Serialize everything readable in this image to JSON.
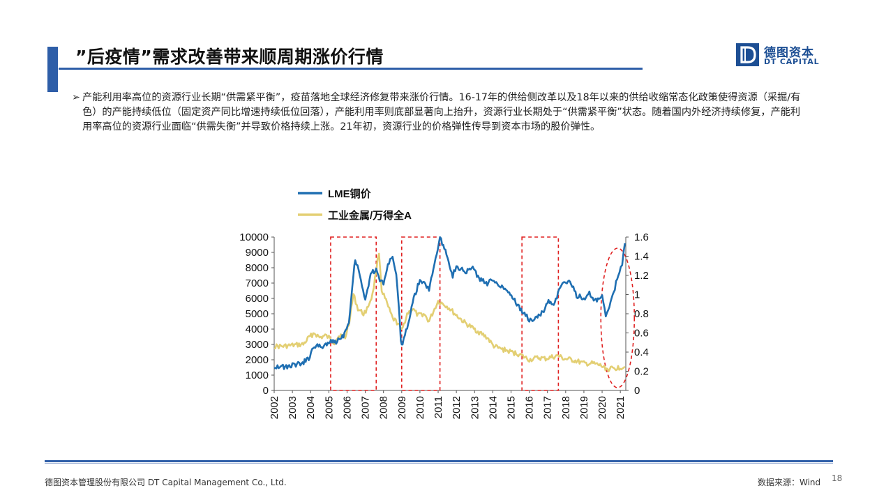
{
  "slide": {
    "title": "”后疫情”需求改善带来顺周期涨价行情",
    "bullet_mark": "➢",
    "bullet_text": "产能利用率高位的资源行业长期“供需紧平衡”，疫苗落地全球经济修复带来涨价行情。16-17年的供给侧改革以及18年以来的供给收缩常态化政策使得资源（采掘/有色）的产能持续低位（固定资产同比增速持续低位回落），产能利用率则底部显著向上抬升，资源行业长期处于“供需紧平衡”状态。随着国内外经济持续修复，产能利用率高位的资源行业面临“供需失衡”并导致价格持续上涨。21年初，资源行业的价格弹性传导到资本市场的股价弹性。",
    "footer_left": "德图资本管理股份有限公司  DT Capital  Management  Co., Ltd.",
    "footer_right": "数据来源：Wind",
    "page_number": "18"
  },
  "logo": {
    "mark": "D",
    "name_cn": "德图资本",
    "name_en": "DT CAPITAL"
  },
  "colors": {
    "accent": "#2e5ea8",
    "lme": "#1f6fb2",
    "industrial": "#e3cf73",
    "highlight": "#e02020"
  },
  "chart_data": {
    "type": "line",
    "x_ticks": [
      "2002",
      "2003",
      "2004",
      "2005",
      "2006",
      "2007",
      "2008",
      "2009",
      "2010",
      "2011",
      "2012",
      "2013",
      "2014",
      "2015",
      "2016",
      "2017",
      "2018",
      "2019",
      "2020",
      "2021"
    ],
    "xlim": [
      2002,
      2021.3
    ],
    "ylim_left": [
      0,
      10000
    ],
    "y_ticks_left": [
      "0",
      "1000",
      "2000",
      "3000",
      "4000",
      "5000",
      "6000",
      "7000",
      "8000",
      "9000",
      "10000"
    ],
    "ylim_right": [
      0,
      1.6
    ],
    "y_ticks_right": [
      "0",
      "0.2",
      "0.4",
      "0.6",
      "0.8",
      "1",
      "1.2",
      "1.4",
      "1.6"
    ],
    "legend_position": "top-left",
    "series": [
      {
        "name": "LME铜价",
        "axis": "left",
        "points": [
          [
            2002.0,
            1550
          ],
          [
            2002.3,
            1600
          ],
          [
            2002.6,
            1500
          ],
          [
            2003.0,
            1650
          ],
          [
            2003.5,
            1750
          ],
          [
            2003.9,
            2100
          ],
          [
            2004.2,
            2900
          ],
          [
            2004.6,
            2850
          ],
          [
            2005.0,
            3150
          ],
          [
            2005.4,
            3200
          ],
          [
            2005.8,
            3600
          ],
          [
            2006.1,
            4500
          ],
          [
            2006.35,
            7500
          ],
          [
            2006.45,
            8600
          ],
          [
            2006.7,
            7600
          ],
          [
            2007.0,
            5800
          ],
          [
            2007.3,
            7700
          ],
          [
            2007.6,
            7800
          ],
          [
            2007.8,
            7200
          ],
          [
            2008.0,
            7000
          ],
          [
            2008.3,
            8400
          ],
          [
            2008.5,
            8800
          ],
          [
            2008.7,
            7500
          ],
          [
            2008.85,
            5200
          ],
          [
            2008.95,
            3300
          ],
          [
            2009.05,
            3000
          ],
          [
            2009.3,
            4100
          ],
          [
            2009.6,
            5800
          ],
          [
            2010.0,
            7200
          ],
          [
            2010.3,
            6900
          ],
          [
            2010.5,
            6600
          ],
          [
            2010.8,
            8300
          ],
          [
            2011.1,
            9900
          ],
          [
            2011.4,
            9200
          ],
          [
            2011.8,
            7500
          ],
          [
            2012.0,
            8100
          ],
          [
            2012.5,
            7700
          ],
          [
            2012.9,
            8000
          ],
          [
            2013.3,
            7200
          ],
          [
            2013.7,
            7000
          ],
          [
            2014.0,
            7200
          ],
          [
            2014.5,
            6800
          ],
          [
            2014.9,
            6400
          ],
          [
            2015.2,
            5900
          ],
          [
            2015.5,
            5300
          ],
          [
            2015.8,
            4900
          ],
          [
            2016.0,
            4600
          ],
          [
            2016.4,
            4700
          ],
          [
            2016.8,
            5200
          ],
          [
            2017.0,
            5800
          ],
          [
            2017.4,
            5700
          ],
          [
            2017.7,
            6700
          ],
          [
            2017.95,
            7100
          ],
          [
            2018.3,
            7000
          ],
          [
            2018.6,
            6200
          ],
          [
            2019.0,
            6000
          ],
          [
            2019.3,
            6300
          ],
          [
            2019.6,
            5800
          ],
          [
            2020.0,
            6100
          ],
          [
            2020.2,
            4800
          ],
          [
            2020.4,
            5500
          ],
          [
            2020.7,
            6700
          ],
          [
            2020.95,
            7800
          ],
          [
            2021.1,
            8300
          ],
          [
            2021.25,
            9600
          ]
        ]
      },
      {
        "name": "工业金属/万得全A",
        "axis": "right",
        "points": [
          [
            2002.0,
            0.46
          ],
          [
            2002.5,
            0.46
          ],
          [
            2003.0,
            0.47
          ],
          [
            2003.6,
            0.48
          ],
          [
            2003.9,
            0.55
          ],
          [
            2004.2,
            0.6
          ],
          [
            2004.5,
            0.55
          ],
          [
            2004.8,
            0.57
          ],
          [
            2005.0,
            0.55
          ],
          [
            2005.3,
            0.5
          ],
          [
            2005.6,
            0.58
          ],
          [
            2005.9,
            0.55
          ],
          [
            2006.1,
            0.7
          ],
          [
            2006.35,
            1.0
          ],
          [
            2006.6,
            0.85
          ],
          [
            2006.9,
            0.8
          ],
          [
            2007.1,
            0.85
          ],
          [
            2007.4,
            1.0
          ],
          [
            2007.6,
            1.25
          ],
          [
            2007.75,
            1.45
          ],
          [
            2007.9,
            1.05
          ],
          [
            2008.2,
            0.9
          ],
          [
            2008.5,
            0.75
          ],
          [
            2008.8,
            0.7
          ],
          [
            2009.0,
            0.62
          ],
          [
            2009.3,
            0.8
          ],
          [
            2009.6,
            0.85
          ],
          [
            2009.9,
            0.78
          ],
          [
            2010.2,
            0.8
          ],
          [
            2010.5,
            0.72
          ],
          [
            2010.8,
            0.85
          ],
          [
            2011.0,
            0.93
          ],
          [
            2011.3,
            0.9
          ],
          [
            2011.6,
            0.86
          ],
          [
            2011.9,
            0.8
          ],
          [
            2012.2,
            0.75
          ],
          [
            2012.5,
            0.7
          ],
          [
            2012.9,
            0.65
          ],
          [
            2013.3,
            0.6
          ],
          [
            2013.7,
            0.55
          ],
          [
            2014.0,
            0.47
          ],
          [
            2014.3,
            0.44
          ],
          [
            2014.7,
            0.42
          ],
          [
            2015.0,
            0.4
          ],
          [
            2015.4,
            0.38
          ],
          [
            2015.7,
            0.35
          ],
          [
            2016.0,
            0.32
          ],
          [
            2016.5,
            0.34
          ],
          [
            2016.9,
            0.33
          ],
          [
            2017.3,
            0.35
          ],
          [
            2017.6,
            0.36
          ],
          [
            2017.9,
            0.33
          ],
          [
            2018.3,
            0.32
          ],
          [
            2018.7,
            0.3
          ],
          [
            2019.0,
            0.28
          ],
          [
            2019.5,
            0.28
          ],
          [
            2019.9,
            0.26
          ],
          [
            2020.3,
            0.22
          ],
          [
            2020.7,
            0.23
          ],
          [
            2021.0,
            0.24
          ],
          [
            2021.25,
            0.25
          ]
        ]
      }
    ],
    "highlight_ranges": [
      [
        2005.1,
        2007.6
      ],
      [
        2009.0,
        2011.1
      ],
      [
        2015.6,
        2017.6
      ]
    ],
    "highlight_ellipse_center_x": 2020.85
  }
}
